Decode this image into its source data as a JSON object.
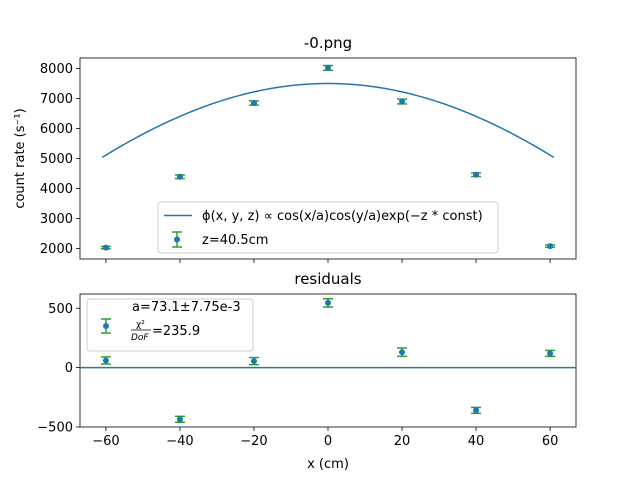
{
  "colors": {
    "fit": "#1f77b4",
    "marker": "#1f77b4",
    "errorbar": "#2ca02c",
    "zero_line": "#1f77b4"
  },
  "chart_data": [
    {
      "type": "scatter",
      "title": "-0.png",
      "xlabel": "",
      "ylabel": "count rate (s⁻¹)",
      "xlim": [
        -67,
        67
      ],
      "ylim": [
        1650,
        8350
      ],
      "xticks": [
        -60,
        -40,
        -20,
        0,
        20,
        40,
        60
      ],
      "yticks": [
        2000,
        3000,
        4000,
        5000,
        6000,
        7000,
        8000
      ],
      "x_tick_labels_visible": false,
      "points": [
        {
          "x": -60,
          "y": 2030,
          "err": 40
        },
        {
          "x": -40,
          "y": 4390,
          "err": 60
        },
        {
          "x": -20,
          "y": 6850,
          "err": 70
        },
        {
          "x": 0,
          "y": 8020,
          "err": 80
        },
        {
          "x": 20,
          "y": 6900,
          "err": 80
        },
        {
          "x": 40,
          "y": 4460,
          "err": 60
        },
        {
          "x": 60,
          "y": 2080,
          "err": 40
        }
      ],
      "fit": {
        "model": "cos",
        "amplitude": 7500,
        "a": 73.1,
        "x_range": [
          -61,
          61
        ]
      },
      "legend": {
        "position": "lower-center",
        "fit_label": "ϕ(x, y, z) ∝ cos(x/a)cos(y/a)exp(−z * const)",
        "points_label": "z=40.5cm"
      }
    },
    {
      "type": "scatter",
      "title": "residuals",
      "xlabel": "x (cm)",
      "ylabel": "",
      "xlim": [
        -67,
        67
      ],
      "ylim": [
        -500,
        620
      ],
      "xticks": [
        -60,
        -40,
        -20,
        0,
        20,
        40,
        60
      ],
      "xtick_labels": [
        "−60",
        "−40",
        "−20",
        "0",
        "20",
        "40",
        "60"
      ],
      "yticks": [
        -500,
        0,
        500
      ],
      "ytick_labels": [
        "−500",
        "0",
        "500"
      ],
      "points": [
        {
          "x": -60,
          "y": 60,
          "err": 30
        },
        {
          "x": -40,
          "y": -435,
          "err": 25
        },
        {
          "x": -20,
          "y": 55,
          "err": 30
        },
        {
          "x": 0,
          "y": 545,
          "err": 35
        },
        {
          "x": 20,
          "y": 130,
          "err": 35
        },
        {
          "x": 40,
          "y": -360,
          "err": 25
        },
        {
          "x": 60,
          "y": 120,
          "err": 25
        }
      ],
      "zero_line": 0,
      "legend": {
        "position": "upper-left",
        "line1": "a=73.1±7.75e-3",
        "chi_label": "χ²",
        "dof_label": "DoF",
        "chi_value": "=235.9"
      }
    }
  ]
}
